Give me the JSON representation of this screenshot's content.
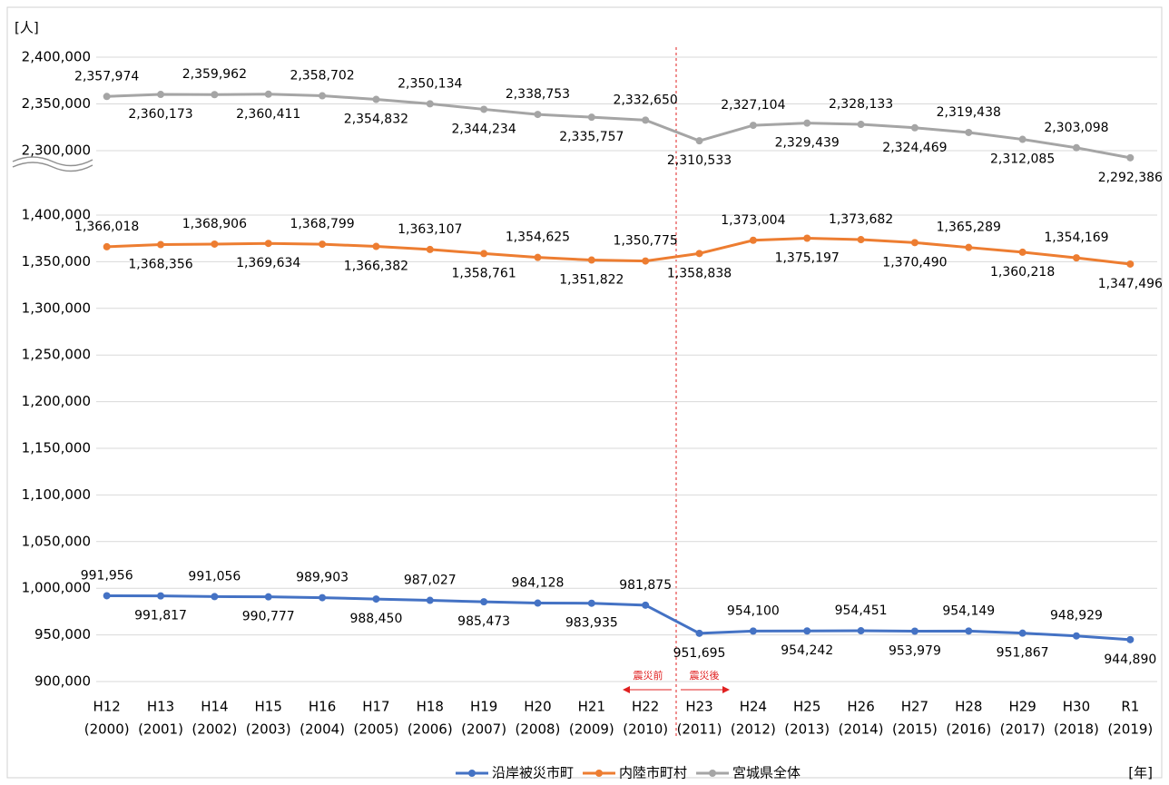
{
  "chart_data": {
    "type": "line",
    "y_unit": "[人]",
    "x_unit": "[年]",
    "annotations": [
      "震災前",
      "震災後"
    ],
    "categories": [
      "H12",
      "H13",
      "H14",
      "H15",
      "H16",
      "H17",
      "H18",
      "H19",
      "H20",
      "H21",
      "H22",
      "H23",
      "H24",
      "H25",
      "H26",
      "H27",
      "H28",
      "H29",
      "H30",
      "R1"
    ],
    "years": [
      "(2000)",
      "(2001)",
      "(2002)",
      "(2003)",
      "(2004)",
      "(2005)",
      "(2006)",
      "(2007)",
      "(2008)",
      "(2009)",
      "(2010)",
      "(2011)",
      "(2012)",
      "(2013)",
      "(2014)",
      "(2015)",
      "(2016)",
      "(2017)",
      "(2018)",
      "(2019)"
    ],
    "ylim": [
      900000,
      1400000
    ],
    "yticks": [
      {
        "value": 900000,
        "label": "900,000"
      },
      {
        "value": 950000,
        "label": "950,000"
      },
      {
        "value": 1000000,
        "label": "1,000,000"
      },
      {
        "value": 1050000,
        "label": "1,050,000"
      },
      {
        "value": 1100000,
        "label": "1,100,000"
      },
      {
        "value": 1150000,
        "label": "1,150,000"
      },
      {
        "value": 1200000,
        "label": "1,200,000"
      },
      {
        "value": 1250000,
        "label": "1,250,000"
      },
      {
        "value": 1300000,
        "label": "1,300,000"
      },
      {
        "value": 1350000,
        "label": "1,350,000"
      },
      {
        "value": 1400000,
        "label": "1,400,000"
      }
    ],
    "y2lim": [
      2290000,
      2400000
    ],
    "y2ticks": [
      {
        "value": 2300000,
        "label": "2,300,000"
      },
      {
        "value": 2350000,
        "label": "2,350,000"
      },
      {
        "value": 2400000,
        "label": "2,400,000"
      }
    ],
    "grid": true,
    "legend": "bottom",
    "series": [
      {
        "name": "沿岸被災市町",
        "color": "#4472c4",
        "values": [
          991956,
          991817,
          991056,
          990777,
          989903,
          988450,
          987027,
          985473,
          984128,
          983935,
          981875,
          951695,
          954100,
          954242,
          954451,
          953979,
          954149,
          951867,
          948929,
          944890
        ],
        "value_labels": [
          "991,956",
          "991,817",
          "991,056",
          "990,777",
          "989,903",
          "988,450",
          "987,027",
          "985,473",
          "984,128",
          "983,935",
          "981,875",
          "951,695",
          "954,100",
          "954,242",
          "954,451",
          "953,979",
          "954,149",
          "951,867",
          "948,929",
          "944,890"
        ]
      },
      {
        "name": "内陸市町村",
        "color": "#ed7d31",
        "values": [
          1366018,
          1368356,
          1368906,
          1369634,
          1368799,
          1366382,
          1363107,
          1358761,
          1354625,
          1351822,
          1350775,
          1358838,
          1373004,
          1375197,
          1373682,
          1370490,
          1365289,
          1360218,
          1354169,
          1347496
        ],
        "value_labels": [
          "1,366,018",
          "1,368,356",
          "1,368,906",
          "1,369,634",
          "1,368,799",
          "1,366,382",
          "1,363,107",
          "1,358,761",
          "1,354,625",
          "1,351,822",
          "1,350,775",
          "1,358,838",
          "1,373,004",
          "1,375,197",
          "1,373,682",
          "1,370,490",
          "1,365,289",
          "1,360,218",
          "1,354,169",
          "1,347,496"
        ]
      },
      {
        "name": "宮城県全体",
        "color": "#a5a5a5",
        "axis": "y2",
        "values": [
          2357974,
          2360173,
          2359962,
          2360411,
          2358702,
          2354832,
          2350134,
          2344234,
          2338753,
          2335757,
          2332650,
          2310533,
          2327104,
          2329439,
          2328133,
          2324469,
          2319438,
          2312085,
          2303098,
          2292386
        ],
        "value_labels": [
          "2,357,974",
          "2,360,173",
          "2,359,962",
          "2,360,411",
          "2,358,702",
          "2,354,832",
          "2,350,134",
          "2,344,234",
          "2,338,753",
          "2,335,757",
          "2,332,650",
          "2,310,533",
          "2,327,104",
          "2,329,439",
          "2,328,133",
          "2,324,469",
          "2,319,438",
          "2,312,085",
          "2,303,098",
          "2,292,386"
        ]
      }
    ]
  }
}
